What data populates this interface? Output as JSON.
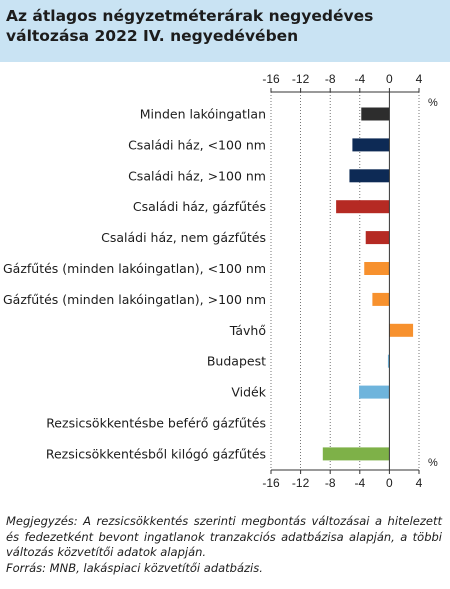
{
  "title": "Az átlagos négyzetméterárak negyedéves változása 2022 IV. negyedévében",
  "colors": {
    "header_bg": "#c9e3f3",
    "dark": "#2d2d2d",
    "navy": "#0d2a55",
    "red": "#b52a23",
    "orange": "#f7912e",
    "light_blue": "#6eb4dc",
    "green": "#7eb148"
  },
  "chart_data": {
    "type": "bar",
    "orientation": "horizontal",
    "unit": "%",
    "xlim": [
      -16,
      4
    ],
    "ticks": [
      -16,
      -12,
      -8,
      -4,
      0,
      4
    ],
    "tick_labels": [
      "-16",
      "-12",
      "-8",
      "-4",
      "0",
      "4"
    ],
    "grid": "vertical dotted",
    "categories": [
      "Minden lakóingatlan",
      "Családi ház, <100 nm",
      "Családi ház, >100 nm",
      "Családi ház, gázfűtés",
      "Családi ház, nem gázfűtés",
      "Gázfűtés (minden lakóingatlan), <100 nm",
      "Gázfűtés (minden lakóingatlan), >100 nm",
      "Távhő",
      "Budapest",
      "Vidék",
      "Rezsicsökkentésbe beférő gázfűtés",
      "Rezsicsökkentésből kilógó gázfűtés"
    ],
    "values": [
      -3.8,
      -5.0,
      -5.4,
      -7.2,
      -3.2,
      -3.4,
      -2.3,
      3.2,
      -0.2,
      -4.1,
      0.0,
      -9.0
    ],
    "bar_colors": [
      "#2d2d2d",
      "#0d2a55",
      "#0d2a55",
      "#b52a23",
      "#b52a23",
      "#f7912e",
      "#f7912e",
      "#f7912e",
      "#6eb4dc",
      "#6eb4dc",
      "#7eb148",
      "#7eb148"
    ]
  },
  "notes": {
    "note": "Megjegyzés: A rezsicsökkentés szerinti megbontás változásai a hitelezett és fedezetként bevont ingatlanok tranzakciós adatbázisa alapján, a többi változás közvetítői adatok alapján.",
    "source": "Forrás: MNB, lakáspiaci közvetítői adatbázis."
  }
}
